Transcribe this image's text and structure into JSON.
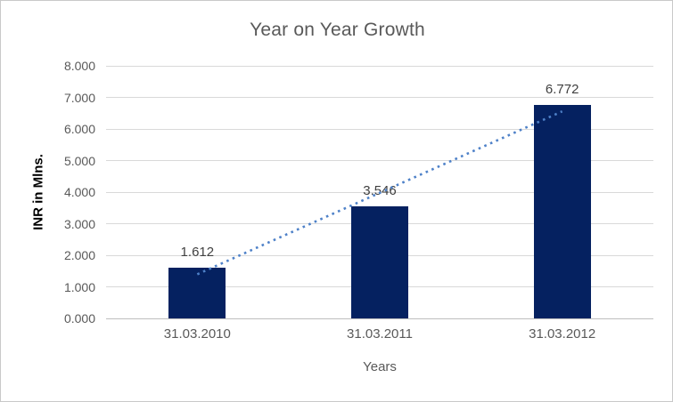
{
  "chart_data": {
    "type": "bar",
    "title": "Year on Year Growth",
    "xlabel": "Years",
    "ylabel": "INR in Mlns.",
    "categories": [
      "31.03.2010",
      "31.03.2011",
      "31.03.2012"
    ],
    "values": [
      1.612,
      3.546,
      6.772
    ],
    "data_labels": [
      "1.612",
      "3.546",
      "6.772"
    ],
    "ylim": [
      0,
      8
    ],
    "ytick_step": 1,
    "ytick_labels": [
      "0.000",
      "1.000",
      "2.000",
      "3.000",
      "4.000",
      "5.000",
      "6.000",
      "7.000",
      "8.000"
    ],
    "grid": true,
    "legend": "none",
    "bar_color": "#052160",
    "trendline": {
      "type": "linear",
      "style": "dotted",
      "color": "#4e81c8",
      "start_value": 1.397,
      "end_value": 6.557
    },
    "colors": {
      "title": "#595959",
      "axis_labels": "#595959",
      "data_label": "#404040",
      "gridline": "#d9d9d9",
      "axis_line": "#bfbfbf",
      "background": "#ffffff",
      "border": "#c9c9c9"
    }
  }
}
